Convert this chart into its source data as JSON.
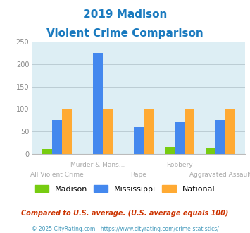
{
  "title_line1": "2019 Madison",
  "title_line2": "Violent Crime Comparison",
  "title_color": "#1a7abf",
  "categories": [
    "All Violent Crime",
    "Murder & Mans...",
    "Rape",
    "Robbery",
    "Aggravated Assault"
  ],
  "top_row_labels": [
    "",
    "Murder & Mans...",
    "",
    "Robbery",
    ""
  ],
  "bottom_row_labels": [
    "All Violent Crime",
    "",
    "Rape",
    "",
    "Aggravated Assault"
  ],
  "series": {
    "Madison": [
      10,
      0,
      0,
      16,
      12
    ],
    "Mississippi": [
      75,
      225,
      60,
      70,
      75
    ],
    "National": [
      100,
      100,
      100,
      100,
      100
    ]
  },
  "colors": {
    "Madison": "#77cc11",
    "Mississippi": "#4488ee",
    "National": "#ffaa33"
  },
  "ylim": [
    0,
    250
  ],
  "yticks": [
    0,
    50,
    100,
    150,
    200,
    250
  ],
  "background_color": "#ddeef4",
  "grid_color": "#bbccd4",
  "legend_labels": [
    "Madison",
    "Mississippi",
    "National"
  ],
  "footnote1": "Compared to U.S. average. (U.S. average equals 100)",
  "footnote2": "© 2025 CityRating.com - https://www.cityrating.com/crime-statistics/",
  "footnote1_color": "#cc3300",
  "footnote2_color": "#4499bb"
}
